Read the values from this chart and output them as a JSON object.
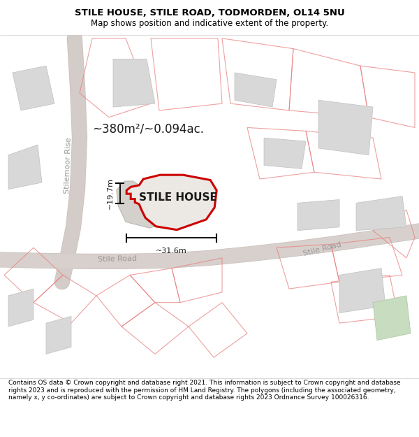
{
  "title": "STILE HOUSE, STILE ROAD, TODMORDEN, OL14 5NU",
  "subtitle": "Map shows position and indicative extent of the property.",
  "footer": "Contains OS data © Crown copyright and database right 2021. This information is subject to Crown copyright and database rights 2023 and is reproduced with the permission of HM Land Registry. The polygons (including the associated geometry, namely x, y co-ordinates) are subject to Crown copyright and database rights 2023 Ordnance Survey 100026316.",
  "map_bg": "#f0eeec",
  "title_bg": "#ffffff",
  "footer_bg": "#ffffff",
  "area_text": "~380m²/~0.094ac.",
  "property_label": "STILE HOUSE",
  "dim_h": "~19.7m",
  "dim_w": "~31.6m",
  "road1_label": "Stilemoor Rise",
  "road2_label": "Stile Road",
  "road3_label": "Stile Road"
}
